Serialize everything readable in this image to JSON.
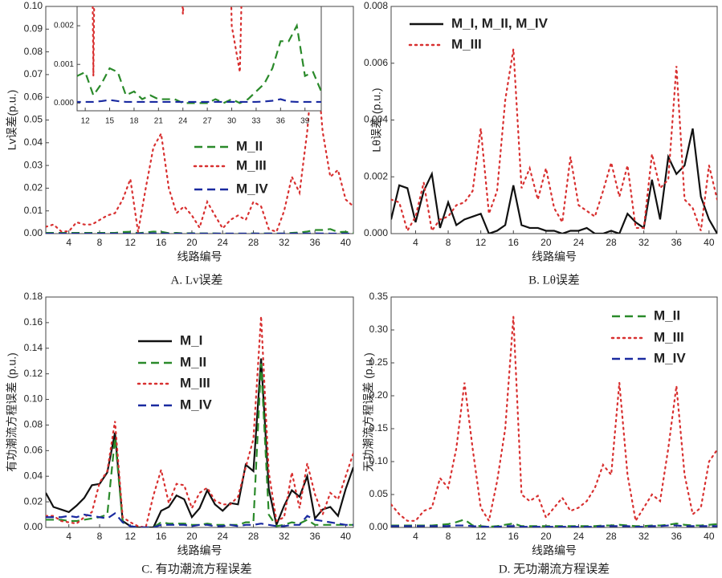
{
  "chart_data": [
    {
      "type": "line",
      "title": "A. Lv误差",
      "xlabel": "线路编号",
      "ylabel": "Lv误差(p.u.)",
      "x": [
        1,
        2,
        3,
        4,
        5,
        6,
        7,
        8,
        9,
        10,
        11,
        12,
        13,
        14,
        15,
        16,
        17,
        18,
        19,
        20,
        21,
        22,
        23,
        24,
        25,
        26,
        27,
        28,
        29,
        30,
        31,
        32,
        33,
        34,
        35,
        36,
        37,
        38,
        39,
        40,
        41
      ],
      "xlim": [
        1,
        41
      ],
      "xticks": [
        4,
        8,
        12,
        16,
        20,
        24,
        28,
        32,
        36,
        40
      ],
      "ylim": [
        0,
        0.1
      ],
      "yticks": [
        {
          "value": 0,
          "label": "0.00"
        },
        {
          "value": 0.01,
          "label": "0.01"
        },
        {
          "value": 0.02,
          "label": "0.02"
        },
        {
          "value": 0.03,
          "label": "0.03"
        },
        {
          "value": 0.04,
          "label": "0.04"
        },
        {
          "value": 0.05,
          "label": "0.05"
        },
        {
          "value": 0.06,
          "label": "0.06"
        },
        {
          "value": 0.07,
          "label": "0.07"
        },
        {
          "value": 0.08,
          "label": "0.08"
        },
        {
          "value": 0.09,
          "label": "0.09"
        },
        {
          "value": 0.1,
          "label": "0.10"
        }
      ],
      "series": [
        {
          "name": "M_II",
          "color": "#2a8a2a",
          "style": "dashed",
          "values": [
            0.0003,
            0.0003,
            0.0003,
            0.0003,
            0.0003,
            0.0003,
            0.0003,
            0.0003,
            0.0003,
            0.0003,
            0.0007,
            0.0008,
            0.0002,
            0.0005,
            0.0009,
            0.0008,
            0.0002,
            0.0003,
            0.0001,
            0.0002,
            0.0001,
            0.0001,
            0.0001,
            0,
            0,
            0,
            0,
            0.0001,
            0,
            0.0001,
            0,
            0.0001,
            0.0003,
            0.0005,
            0.0009,
            0.0016,
            0.0016,
            0.002,
            0.0007,
            0.0008,
            0.0003
          ]
        },
        {
          "name": "M_III",
          "color": "#d83030",
          "style": "dotted",
          "values": [
            0.003,
            0.004,
            0.001,
            0.001,
            0.005,
            0.004,
            0.004,
            0.006,
            0.008,
            0.009,
            0.015,
            0.024,
            0.0007,
            0.02,
            0.038,
            0.044,
            0.02,
            0.009,
            0.012,
            0.008,
            0.0026,
            0.014,
            0.008,
            0.0023,
            0.006,
            0.008,
            0.006,
            0.014,
            0.012,
            0.002,
            0.0008,
            0.01,
            0.025,
            0.018,
            0.045,
            0.085,
            0.045,
            0.025,
            0.028,
            0.015,
            0.012
          ]
        },
        {
          "name": "M_IV",
          "color": "#1a2aa0",
          "style": "dashed",
          "values": [
            3e-05,
            3e-05,
            3e-05,
            3e-05,
            3e-05,
            3e-05,
            3e-05,
            3e-05,
            3e-05,
            3e-05,
            3e-05,
            3e-05,
            3e-05,
            5e-05,
            8e-05,
            5e-05,
            3e-05,
            3e-05,
            3e-05,
            3e-05,
            3e-05,
            3e-05,
            3e-05,
            3e-05,
            3e-05,
            3e-05,
            3e-05,
            3e-05,
            3e-05,
            3e-05,
            3e-05,
            3e-05,
            3e-05,
            4e-05,
            6e-05,
            0.0001,
            4e-05,
            3e-05,
            3e-05,
            3e-05,
            3e-05
          ]
        }
      ],
      "inset": {
        "xlim": [
          11,
          41
        ],
        "xticks": [
          12,
          15,
          18,
          21,
          24,
          27,
          30,
          33,
          36,
          39
        ],
        "ylim": [
          -0.0002,
          0.0025
        ],
        "yticks": [
          {
            "value": 0,
            "label": "0.000"
          },
          {
            "value": 0.001,
            "label": "0.001"
          },
          {
            "value": 0.002,
            "label": "0.002"
          }
        ]
      }
    },
    {
      "type": "line",
      "title": "B. Lθ误差",
      "xlabel": "线路编号",
      "ylabel": "Lθ误差 (p.u.)",
      "x": [
        1,
        2,
        3,
        4,
        5,
        6,
        7,
        8,
        9,
        10,
        11,
        12,
        13,
        14,
        15,
        16,
        17,
        18,
        19,
        20,
        21,
        22,
        23,
        24,
        25,
        26,
        27,
        28,
        29,
        30,
        31,
        32,
        33,
        34,
        35,
        36,
        37,
        38,
        39,
        40,
        41
      ],
      "xlim": [
        1,
        41
      ],
      "xticks": [
        4,
        8,
        12,
        16,
        20,
        24,
        28,
        32,
        36,
        40
      ],
      "ylim": [
        0,
        0.008
      ],
      "yticks": [
        {
          "value": 0,
          "label": "0.000"
        },
        {
          "value": 0.002,
          "label": "0.002"
        },
        {
          "value": 0.004,
          "label": "0.004"
        },
        {
          "value": 0.006,
          "label": "0.006"
        },
        {
          "value": 0.008,
          "label": "0.008"
        }
      ],
      "series": [
        {
          "name": "M_I, M_II, M_IV",
          "color": "#111111",
          "style": "solid",
          "values": [
            0.0005,
            0.0017,
            0.0016,
            0.0004,
            0.0015,
            0.0021,
            0.0002,
            0.0011,
            0.0003,
            0.0005,
            0.0006,
            0.0007,
            0,
            0.0001,
            0.0003,
            0.0017,
            0.0003,
            0.0002,
            0.0002,
            0.0001,
            0.0001,
            0,
            0.0001,
            0.0001,
            0.0002,
            0,
            0,
            0.0001,
            0,
            0.0007,
            0.0004,
            0.0002,
            0.0019,
            0.0005,
            0.0027,
            0.0021,
            0.0024,
            0.0037,
            0.0013,
            0.0005,
            0
          ]
        },
        {
          "name": "M_III",
          "color": "#d83030",
          "style": "dotted",
          "values": [
            0.0012,
            0.0011,
            0.0001,
            0.0006,
            0.0018,
            0.0001,
            0.0005,
            0.0006,
            0.001,
            0.0011,
            0.0015,
            0.0037,
            0.0007,
            0.0015,
            0.0047,
            0.0065,
            0.0016,
            0.0023,
            0.0012,
            0.0023,
            0.0009,
            0.0004,
            0.0027,
            0.001,
            0.0008,
            0.0006,
            0.0015,
            0.0025,
            0.0013,
            0.0024,
            0.0002,
            0.0002,
            0.0028,
            0.0016,
            0.0019,
            0.0059,
            0.0012,
            0.0009,
            0.0001,
            0.0024,
            0.0012
          ]
        }
      ]
    },
    {
      "type": "line",
      "title": "C. 有功潮流方程误差",
      "xlabel": "线路编号",
      "ylabel": "有功潮流方程误差 (p.u.)",
      "x": [
        1,
        2,
        3,
        4,
        5,
        6,
        7,
        8,
        9,
        10,
        11,
        12,
        13,
        14,
        15,
        16,
        17,
        18,
        19,
        20,
        21,
        22,
        23,
        24,
        25,
        26,
        27,
        28,
        29,
        30,
        31,
        32,
        33,
        34,
        35,
        36,
        37,
        38,
        39,
        40,
        41
      ],
      "xlim": [
        1,
        41
      ],
      "xticks": [
        4,
        8,
        12,
        16,
        20,
        24,
        28,
        32,
        36,
        40
      ],
      "ylim": [
        0,
        0.18
      ],
      "yticks": [
        {
          "value": 0,
          "label": "0.00"
        },
        {
          "value": 0.02,
          "label": "0.02"
        },
        {
          "value": 0.04,
          "label": "0.04"
        },
        {
          "value": 0.06,
          "label": "0.06"
        },
        {
          "value": 0.08,
          "label": "0.08"
        },
        {
          "value": 0.1,
          "label": "0.10"
        },
        {
          "value": 0.12,
          "label": "0.12"
        },
        {
          "value": 0.14,
          "label": "0.14"
        },
        {
          "value": 0.16,
          "label": "0.16"
        },
        {
          "value": 0.18,
          "label": "0.18"
        }
      ],
      "series": [
        {
          "name": "M_I",
          "color": "#111111",
          "style": "solid",
          "values": [
            0.027,
            0.016,
            0.014,
            0.012,
            0.017,
            0.023,
            0.033,
            0.034,
            0.043,
            0.074,
            0.005,
            0.001,
            0,
            0,
            0,
            0.013,
            0.016,
            0.025,
            0.022,
            0.008,
            0.015,
            0.029,
            0.018,
            0.013,
            0.019,
            0.018,
            0.049,
            0.044,
            0.132,
            0.03,
            0.002,
            0.017,
            0.029,
            0.024,
            0.04,
            0.007,
            0.014,
            0.016,
            0.009,
            0.03,
            0.047
          ]
        },
        {
          "name": "M_II",
          "color": "#2a8a2a",
          "style": "dashed",
          "values": [
            0.006,
            0.006,
            0.006,
            0.005,
            0.005,
            0.006,
            0.007,
            0.008,
            0.01,
            0.07,
            0.004,
            0.001,
            0,
            0,
            0,
            0.004,
            0.003,
            0.003,
            0.003,
            0.002,
            0.002,
            0.003,
            0.002,
            0.002,
            0.002,
            0.002,
            0.004,
            0.004,
            0.128,
            0.01,
            0.001,
            0.002,
            0.004,
            0.003,
            0.006,
            0.002,
            0.002,
            0.002,
            0.002,
            0.002,
            0.002
          ]
        },
        {
          "name": "M_III",
          "color": "#d83030",
          "style": "dotted",
          "values": [
            0.009,
            0.009,
            0.005,
            0.004,
            0.003,
            0.008,
            0.012,
            0.035,
            0.044,
            0.083,
            0.008,
            0.004,
            0.001,
            0,
            0.025,
            0.045,
            0.019,
            0.034,
            0.033,
            0.015,
            0.027,
            0.031,
            0.021,
            0.018,
            0.018,
            0.024,
            0.047,
            0.069,
            0.165,
            0.043,
            0.005,
            0.008,
            0.043,
            0.015,
            0.05,
            0.026,
            0.01,
            0.027,
            0.022,
            0.04,
            0.058
          ]
        },
        {
          "name": "M_IV",
          "color": "#1a2aa0",
          "style": "dashed",
          "values": [
            0.008,
            0.008,
            0.008,
            0.009,
            0.008,
            0.01,
            0.009,
            0.008,
            0.007,
            0.011,
            0.004,
            0.001,
            0,
            0,
            0,
            0.002,
            0.002,
            0.002,
            0.002,
            0.001,
            0.002,
            0.002,
            0.001,
            0.001,
            0.002,
            0.001,
            0.002,
            0.002,
            0.003,
            0.002,
            0.001,
            0.001,
            0.002,
            0.002,
            0.009,
            0.006,
            0.005,
            0.004,
            0.003,
            0.002,
            0.002
          ]
        }
      ]
    },
    {
      "type": "line",
      "title": "D. 无功潮流方程误差",
      "xlabel": "线路编号",
      "ylabel": "无功潮流方程误差 (p.u.)",
      "x": [
        1,
        2,
        3,
        4,
        5,
        6,
        7,
        8,
        9,
        10,
        11,
        12,
        13,
        14,
        15,
        16,
        17,
        18,
        19,
        20,
        21,
        22,
        23,
        24,
        25,
        26,
        27,
        28,
        29,
        30,
        31,
        32,
        33,
        34,
        35,
        36,
        37,
        38,
        39,
        40,
        41
      ],
      "xlim": [
        1,
        41
      ],
      "xticks": [
        4,
        8,
        12,
        16,
        20,
        24,
        28,
        32,
        36,
        40
      ],
      "ylim": [
        0,
        0.35
      ],
      "yticks": [
        {
          "value": 0,
          "label": "0.00"
        },
        {
          "value": 0.05,
          "label": "0.05"
        },
        {
          "value": 0.1,
          "label": "0.10"
        },
        {
          "value": 0.15,
          "label": "0.15"
        },
        {
          "value": 0.2,
          "label": "0.20"
        },
        {
          "value": 0.25,
          "label": "0.25"
        },
        {
          "value": 0.3,
          "label": "0.30"
        },
        {
          "value": 0.35,
          "label": "0.35"
        }
      ],
      "series": [
        {
          "name": "M_II",
          "color": "#2a8a2a",
          "style": "dashed",
          "values": [
            0.003,
            0.003,
            0.003,
            0.003,
            0.003,
            0.003,
            0.004,
            0.005,
            0.008,
            0.012,
            0.003,
            0.002,
            0.001,
            0.002,
            0.004,
            0.006,
            0.002,
            0.002,
            0.002,
            0.002,
            0.002,
            0.002,
            0.002,
            0.002,
            0.002,
            0.002,
            0.003,
            0.003,
            0.004,
            0.003,
            0.002,
            0.002,
            0.003,
            0.003,
            0.004,
            0.006,
            0.004,
            0.003,
            0.003,
            0.004,
            0.005
          ]
        },
        {
          "name": "M_III",
          "color": "#d83030",
          "style": "dotted",
          "values": [
            0.035,
            0.02,
            0.01,
            0.01,
            0.025,
            0.03,
            0.075,
            0.06,
            0.12,
            0.22,
            0.12,
            0.03,
            0.01,
            0.07,
            0.15,
            0.32,
            0.05,
            0.04,
            0.048,
            0.015,
            0.03,
            0.045,
            0.025,
            0.03,
            0.04,
            0.06,
            0.095,
            0.08,
            0.22,
            0.08,
            0.01,
            0.03,
            0.05,
            0.04,
            0.12,
            0.215,
            0.08,
            0.02,
            0.03,
            0.1,
            0.118
          ]
        },
        {
          "name": "M_IV",
          "color": "#1a2aa0",
          "style": "dashed",
          "values": [
            0.002,
            0.002,
            0.002,
            0.002,
            0.002,
            0.002,
            0.002,
            0.002,
            0.003,
            0.003,
            0.002,
            0.001,
            0.001,
            0.001,
            0.002,
            0.002,
            0.001,
            0.001,
            0.001,
            0.001,
            0.001,
            0.001,
            0.001,
            0.001,
            0.001,
            0.001,
            0.002,
            0.002,
            0.002,
            0.002,
            0.001,
            0.001,
            0.002,
            0.002,
            0.003,
            0.003,
            0.002,
            0.002,
            0.002,
            0.002,
            0.002
          ]
        }
      ]
    }
  ]
}
